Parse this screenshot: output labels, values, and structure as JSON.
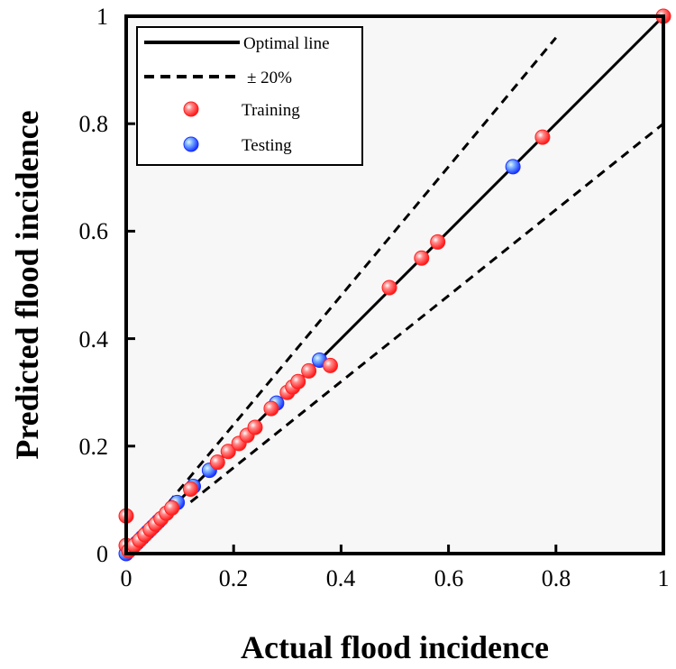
{
  "chart_data": {
    "type": "scatter",
    "title": "",
    "xlabel": "Actual flood incidence",
    "ylabel": "Predicted flood incidence",
    "xlim": [
      0,
      1
    ],
    "ylim": [
      0,
      1
    ],
    "xticks": [
      0,
      0.2,
      0.4,
      0.6,
      0.8,
      1
    ],
    "yticks": [
      0,
      0.2,
      0.4,
      0.6,
      0.8,
      1
    ],
    "xtick_labels": [
      "0",
      "0.2",
      "0.4",
      "0.6",
      "0.8",
      "1"
    ],
    "ytick_labels": [
      "0",
      "0.2",
      "0.4",
      "0.6",
      "0.8",
      "1"
    ],
    "grid": false,
    "legend_position": "top-left",
    "lines": [
      {
        "name": "Optimal line",
        "style": "solid",
        "slope": 1.0,
        "x": [
          0,
          1
        ]
      },
      {
        "name": "± 20% upper",
        "style": "dashed",
        "slope": 1.2,
        "x": [
          0.06,
          0.8
        ]
      },
      {
        "name": "± 20% lower",
        "style": "dashed",
        "slope": 0.8,
        "x": [
          0.12,
          1
        ]
      }
    ],
    "legend": [
      {
        "label": "Optimal line",
        "kind": "solid-line"
      },
      {
        "label": "± 20%",
        "kind": "dashed-line"
      },
      {
        "label": "Training",
        "kind": "marker",
        "color": "#ff2a2a"
      },
      {
        "label": "Testing",
        "kind": "marker",
        "color": "#2a3cff"
      }
    ],
    "series": [
      {
        "name": "Training",
        "color": "#ff2a2a",
        "x": [
          0,
          0,
          0.005,
          0.015,
          0.025,
          0.035,
          0.045,
          0.055,
          0.065,
          0.075,
          0.085,
          0.12,
          0.17,
          0.19,
          0.21,
          0.225,
          0.24,
          0.27,
          0.3,
          0.31,
          0.32,
          0.34,
          0.38,
          0.49,
          0.55,
          0.58,
          0.775,
          1.0
        ],
        "y": [
          0.07,
          0.015,
          0.005,
          0.015,
          0.025,
          0.035,
          0.045,
          0.055,
          0.065,
          0.075,
          0.085,
          0.12,
          0.17,
          0.19,
          0.205,
          0.22,
          0.235,
          0.27,
          0.3,
          0.31,
          0.32,
          0.34,
          0.35,
          0.495,
          0.55,
          0.58,
          0.775,
          1.0
        ]
      },
      {
        "name": "Testing",
        "color": "#2a3cff",
        "x": [
          0,
          0.01,
          0.02,
          0.03,
          0.04,
          0.05,
          0.06,
          0.095,
          0.125,
          0.155,
          0.28,
          0.36,
          0.72
        ],
        "y": [
          0,
          0.01,
          0.02,
          0.03,
          0.04,
          0.05,
          0.06,
          0.095,
          0.125,
          0.155,
          0.28,
          0.36,
          0.72
        ]
      }
    ]
  }
}
